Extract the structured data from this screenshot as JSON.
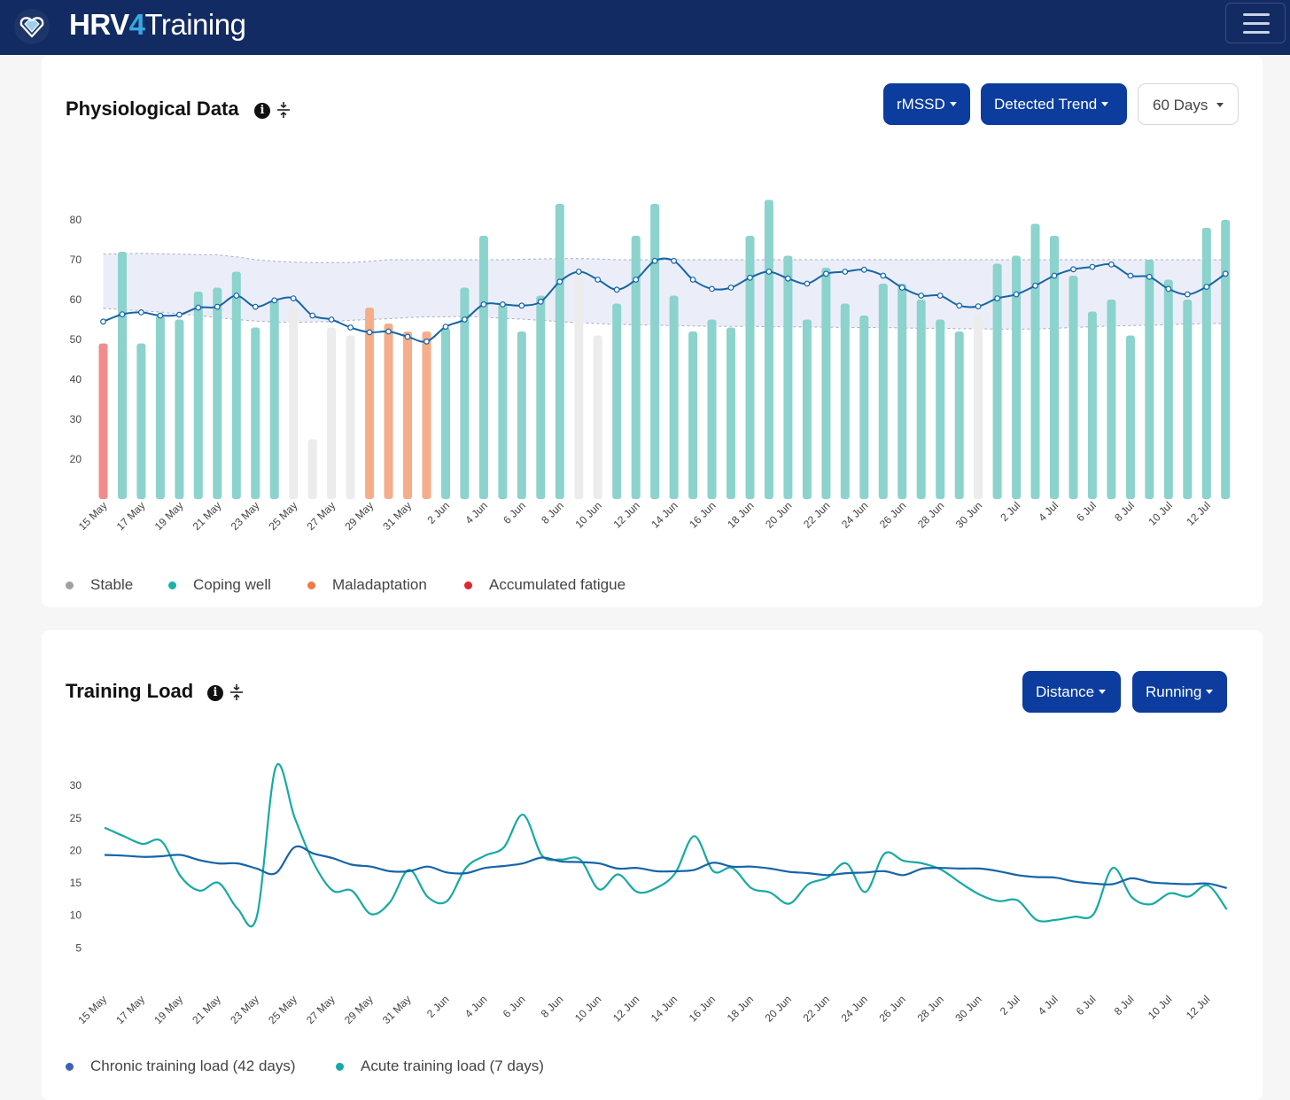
{
  "app": {
    "brand_part1": "HRV",
    "brand_part2": "4",
    "brand_part3": "Training",
    "icons": {
      "logo": "heart-diamond-logo",
      "menu": "hamburger-icon"
    }
  },
  "colors": {
    "navbar": "#122b63",
    "primary_button": "#0b3c9e",
    "stable": "#a0a0a0",
    "coping_well": "#1bb3a6",
    "maladaptation": "#f07a43",
    "accumulated_fatigue": "#e0262e",
    "trend_line": "#1565a8",
    "chronic_load": "#1565a8",
    "acute_load": "#16aaa4"
  },
  "physio": {
    "title": "Physiological Data",
    "buttons": {
      "metric": "rMSSD",
      "trend": "Detected Trend",
      "range": "60 Days"
    },
    "legend": [
      "Stable",
      "Coping well",
      "Maladaptation",
      "Accumulated fatigue"
    ],
    "x_labels": [
      "15 May",
      "17 May",
      "19 May",
      "21 May",
      "23 May",
      "25 May",
      "27 May",
      "29 May",
      "31 May",
      "2 Jun",
      "4 Jun",
      "6 Jun",
      "8 Jun",
      "10 Jun",
      "12 Jun",
      "14 Jun",
      "16 Jun",
      "18 Jun",
      "20 Jun",
      "22 Jun",
      "24 Jun",
      "26 Jun",
      "28 Jun",
      "30 Jun",
      "2 Jul",
      "4 Jul",
      "6 Jul",
      "8 Jul",
      "10 Jul",
      "12 Jul"
    ],
    "y_ticks": [
      20,
      30,
      40,
      50,
      60,
      70,
      80
    ]
  },
  "training": {
    "title": "Training Load",
    "buttons": {
      "metric": "Distance",
      "sport": "Running"
    },
    "legend": [
      "Chronic training load (42 days)",
      "Acute training load (7 days)"
    ],
    "x_labels": [
      "15 May",
      "17 May",
      "19 May",
      "21 May",
      "23 May",
      "25 May",
      "27 May",
      "29 May",
      "31 May",
      "2 Jun",
      "4 Jun",
      "6 Jun",
      "8 Jun",
      "10 Jun",
      "12 Jun",
      "14 Jun",
      "16 Jun",
      "18 Jun",
      "20 Jun",
      "22 Jun",
      "24 Jun",
      "26 Jun",
      "28 Jun",
      "30 Jun",
      "2 Jul",
      "4 Jul",
      "6 Jul",
      "8 Jul",
      "10 Jul",
      "12 Jul"
    ],
    "y_ticks": [
      5,
      10,
      15,
      20,
      25,
      30
    ]
  },
  "chart_data": [
    {
      "type": "bar",
      "title": "Physiological Data",
      "y_range": [
        10,
        90
      ],
      "grid": false,
      "legend_position": "bottom-left",
      "categories_start": "15 May",
      "category_step_days": 1,
      "series": [
        {
          "name": "rMSSD",
          "values": [
            49,
            72,
            49,
            56,
            55,
            62,
            63,
            67,
            53,
            60,
            58,
            25,
            53,
            51,
            58,
            54,
            52,
            52,
            53,
            63,
            76,
            59,
            52,
            61,
            84,
            67,
            51,
            59,
            76,
            84,
            61,
            52,
            55,
            53,
            76,
            85,
            71,
            55,
            68,
            59,
            56,
            64,
            64,
            60,
            55,
            52,
            56,
            69,
            71,
            79,
            76,
            66,
            57,
            60,
            51,
            70,
            65,
            60,
            78,
            80
          ]
        },
        {
          "name": "Detected Trend",
          "values": [
            54.5,
            56.3,
            56.8,
            56,
            56.2,
            58,
            58.2,
            61,
            58.2,
            59.8,
            60.3,
            56,
            55,
            53,
            51.8,
            52,
            50.7,
            49.5,
            53.2,
            55,
            58.8,
            58.8,
            58.5,
            59.5,
            64.5,
            67,
            65,
            62.5,
            65,
            69.7,
            69.7,
            65,
            62.7,
            63,
            65.5,
            67,
            65.3,
            64,
            66.5,
            67,
            67.5,
            66,
            63,
            61,
            61,
            58.5,
            58.3,
            60.3,
            61.3,
            63.5,
            66,
            67.6,
            68.2,
            68.8,
            66,
            65.7,
            62.7,
            61.3,
            63.2,
            66.5
          ]
        },
        {
          "name": "normal range upper",
          "values": [
            71.4,
            71.5,
            71.6,
            71.5,
            71.4,
            71.3,
            71.2,
            70.7,
            70,
            69.6,
            69.4,
            69.3,
            69.3,
            69.3,
            69.6,
            70,
            70,
            70,
            70,
            70,
            70,
            70,
            70.1,
            70.2,
            70.3,
            70.3,
            70.2,
            70,
            70,
            70,
            70,
            70,
            70,
            70,
            70,
            70,
            70,
            70,
            70,
            70,
            70,
            70,
            70,
            70,
            70,
            70,
            70,
            70,
            70,
            70,
            70,
            70,
            70,
            70,
            70,
            70,
            70,
            70,
            70,
            70
          ]
        },
        {
          "name": "normal range lower",
          "values": [
            57.8,
            57.5,
            57.2,
            56.9,
            56.4,
            56,
            55.5,
            55,
            54.6,
            54.4,
            54.3,
            54.4,
            54.5,
            54.8,
            55,
            55.2,
            55.5,
            55.7,
            55.7,
            55.8,
            55.6,
            55.3,
            55.1,
            54.8,
            54.5,
            54.2,
            54,
            53.8,
            53.7,
            53.6,
            53.5,
            53.4,
            53.3,
            53.3,
            53.3,
            53.2,
            53.2,
            53.1,
            53.1,
            53,
            53,
            53,
            52.9,
            52.8,
            52.8,
            52.7,
            52.7,
            52.6,
            52.6,
            52.6,
            52.8,
            53,
            53.2,
            53.4,
            53.5,
            53.6,
            53.7,
            53.9,
            54,
            54
          ]
        }
      ],
      "status": [
        "accumulated fatigue",
        "coping well",
        "coping well",
        "coping well",
        "coping well",
        "coping well",
        "coping well",
        "coping well",
        "coping well",
        "coping well",
        "stable",
        "stable",
        "stable",
        "stable",
        "maladaptation",
        "maladaptation",
        "maladaptation",
        "maladaptation",
        "coping well",
        "coping well",
        "coping well",
        "coping well",
        "coping well",
        "coping well",
        "coping well",
        "stable",
        "stable",
        "coping well",
        "coping well",
        "coping well",
        "coping well",
        "coping well",
        "coping well",
        "coping well",
        "coping well",
        "coping well",
        "coping well",
        "coping well",
        "coping well",
        "coping well",
        "coping well",
        "coping well",
        "coping well",
        "coping well",
        "coping well",
        "coping well",
        "stable",
        "coping well",
        "coping well",
        "coping well",
        "coping well",
        "coping well",
        "coping well",
        "coping well",
        "coping well",
        "coping well",
        "coping well",
        "coping well",
        "coping well",
        "coping well"
      ]
    },
    {
      "type": "line",
      "title": "Training Load",
      "y_range": [
        0,
        35
      ],
      "grid": false,
      "legend_position": "bottom-left",
      "x_start": "15 May",
      "x_step_days": 1,
      "series": [
        {
          "name": "Chronic training load (42 days)",
          "values": [
            19.3,
            19.2,
            19,
            19.1,
            19.3,
            18.5,
            18,
            18,
            17.2,
            16.5,
            20.5,
            19.5,
            18.8,
            17.8,
            17.5,
            16.8,
            16.8,
            17.5,
            16.6,
            16.5,
            17.3,
            17.6,
            18,
            18.9,
            18.3,
            18.2,
            18,
            17.2,
            17.3,
            16.8,
            16.8,
            17,
            18.1,
            17.5,
            17.5,
            17.2,
            16.7,
            16.5,
            16.2,
            16.5,
            16.6,
            16.8,
            16.2,
            17.2,
            17.3,
            17.2,
            17.2,
            16.8,
            16.2,
            15.9,
            15.8,
            15.2,
            14.9,
            14.8,
            15.7,
            15.1,
            14.9,
            14.8,
            14.9,
            14.2
          ]
        },
        {
          "name": "Acute training load (7 days)",
          "values": [
            23.5,
            22.2,
            21,
            21.4,
            16,
            13.8,
            15,
            11,
            9.8,
            32.8,
            25,
            18,
            13.8,
            13.8,
            10.2,
            12,
            17,
            12.8,
            12.2,
            17.3,
            19.2,
            20.5,
            25.5,
            19.2,
            18.6,
            18.6,
            14,
            16.3,
            13.6,
            14.2,
            16.5,
            22.2,
            16.8,
            17.3,
            14.2,
            13.5,
            11.8,
            14.8,
            15.8,
            18,
            13.6,
            19.5,
            18.4,
            18,
            17,
            15,
            13.2,
            12.2,
            12.3,
            9.3,
            9.3,
            9.8,
            10.2,
            17.3,
            12.8,
            11.7,
            13.4,
            12.9,
            14.6,
            10.9
          ]
        }
      ]
    }
  ]
}
